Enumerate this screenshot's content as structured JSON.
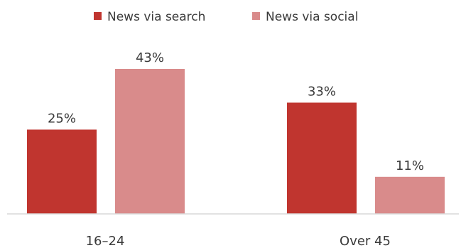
{
  "chart_data": {
    "type": "bar",
    "categories": [
      "16–24",
      "Over 45"
    ],
    "series": [
      {
        "name": "News via search",
        "values": [
          25,
          33
        ],
        "labels": [
          "25%",
          "33%"
        ],
        "color": "#c0352f"
      },
      {
        "name": "News via social",
        "values": [
          43,
          11
        ],
        "labels": [
          "43%",
          "11%"
        ],
        "color": "#d98b8b"
      }
    ],
    "ylim": [
      0,
      50
    ],
    "grid": false,
    "legend": "top-center",
    "title": "",
    "xlabel": "",
    "ylabel": ""
  }
}
